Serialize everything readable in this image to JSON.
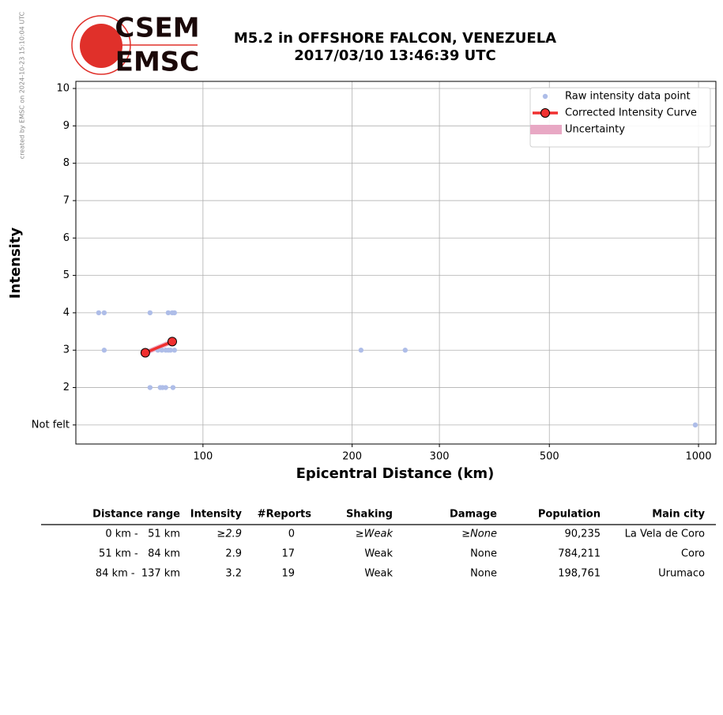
{
  "credit": "created by EMSC on 2024-10-23 15:10:04 UTC",
  "logo": {
    "top": "CSEM",
    "bottom": "EMSC"
  },
  "chart_data": {
    "type": "scatter",
    "title": "M5.2 in OFFSHORE FALCON, VENEZUELA",
    "subtitle": "2017/03/10 13:46:39 UTC",
    "x_label": "Epicentral Distance (km)",
    "y_label": "Intensity",
    "xscale": "log",
    "xlim": [
      55.4,
      1084
    ],
    "ylim": [
      0.49,
      10.19
    ],
    "xticks": [
      100,
      200,
      300,
      500,
      1000
    ],
    "yticks": [
      {
        "value": 1,
        "label": "Not felt"
      },
      2,
      3,
      4,
      5,
      6,
      7,
      8,
      9,
      10
    ],
    "grid": true,
    "legend": "upper right",
    "series": [
      {
        "name": "Raw intensity data point",
        "color": "#aebde8",
        "style": "points",
        "x": [
          61.6,
          63.2,
          78.2,
          85.1,
          86.7,
          87.6,
          63.2,
          81.1,
          82.6,
          84.1,
          85.1,
          86.0,
          87.6,
          208.4,
          255.9,
          78.2,
          82.0,
          82.9,
          84.1,
          87.0,
          985
        ],
        "values": [
          4,
          4,
          4,
          4,
          4,
          4,
          3,
          3,
          3,
          3,
          3,
          3,
          3,
          3,
          3,
          2,
          2,
          2,
          2,
          2,
          1
        ]
      },
      {
        "name": "Corrected Intensity Curve",
        "color": "#f03030",
        "style": "line",
        "x": [
          76.5,
          86.7
        ],
        "values": [
          2.93,
          3.23
        ]
      }
    ],
    "uncertainty": {
      "name": "Uncertainty",
      "color": "#e8a8c4",
      "x": [
        76.5,
        86.7
      ],
      "lower": [
        2.86,
        3.16
      ],
      "upper": [
        3.0,
        3.3
      ]
    }
  },
  "table": {
    "columns": [
      "Distance range",
      "Intensity",
      "#Reports",
      "Shaking",
      "Damage",
      "Population",
      "Main city"
    ],
    "rows": [
      [
        "0 km -   51 km",
        "≥2.9",
        "0",
        "≥Weak",
        "≥None",
        "90,235",
        "La Vela de Coro"
      ],
      [
        "51 km -   84 km",
        "2.9",
        "17",
        "Weak",
        "None",
        "784,211",
        "Coro"
      ],
      [
        "84 km -  137 km",
        "3.2",
        "19",
        "Weak",
        "None",
        "198,761",
        "Urumaco"
      ]
    ]
  }
}
